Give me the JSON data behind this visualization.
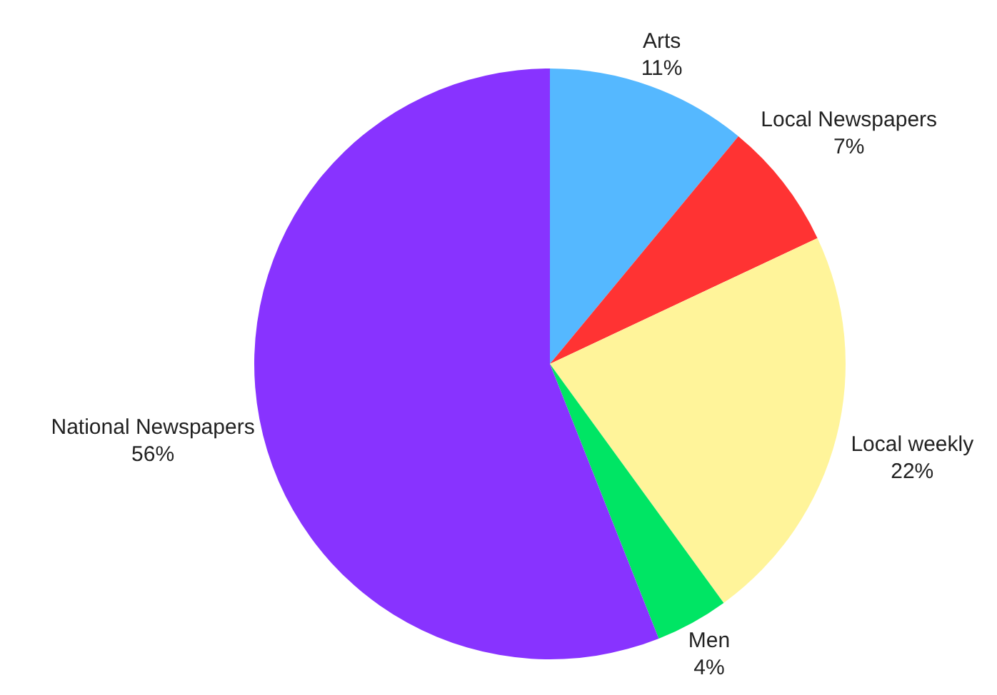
{
  "chart_data": {
    "type": "pie",
    "categories": [
      "Arts",
      "Local Newspapers",
      "Local weekly",
      "Men",
      "National Newspapers"
    ],
    "values": [
      11,
      7,
      22,
      4,
      56
    ],
    "colors": [
      "#55b8ff",
      "#ff3333",
      "#fff49a",
      "#00e564",
      "#8833ff"
    ],
    "value_labels": [
      "11%",
      "7%",
      "22%",
      "4%",
      "56%"
    ]
  }
}
